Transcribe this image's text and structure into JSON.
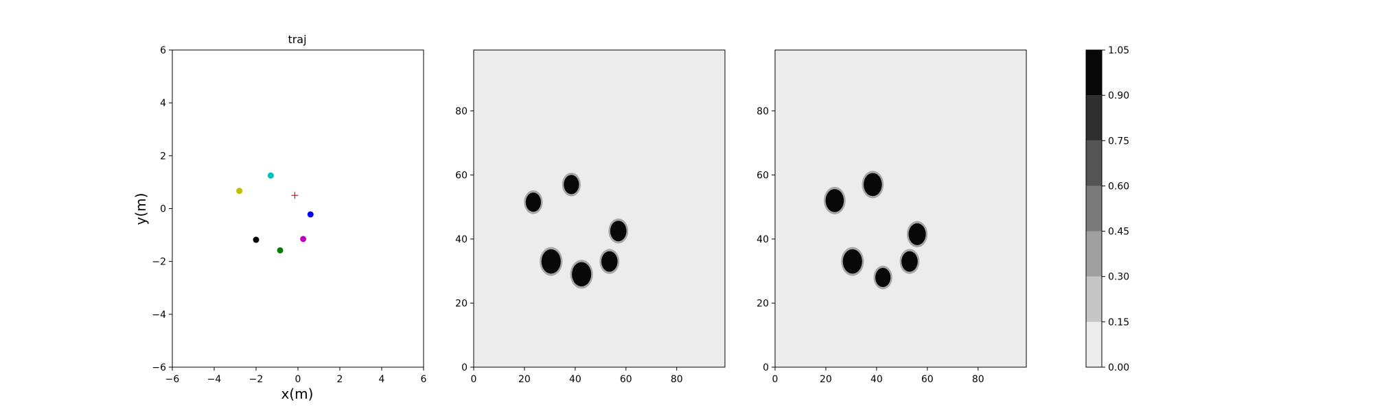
{
  "charts": [
    {
      "chart_data": {
        "type": "scatter",
        "title": "traj",
        "xlabel": "x(m)",
        "ylabel": "y(m)",
        "xlim": [
          -6,
          6
        ],
        "ylim": [
          -6,
          6
        ],
        "xticks": [
          -6,
          -4,
          -2,
          0,
          2,
          4,
          6
        ],
        "yticks": [
          -6,
          -4,
          -2,
          0,
          2,
          4,
          6
        ],
        "grid": false,
        "points": [
          {
            "x": -2.8,
            "y": 0.67,
            "color": "#bfbf00"
          },
          {
            "x": -1.3,
            "y": 1.25,
            "color": "#00bfbf"
          },
          {
            "x": 0.6,
            "y": -0.22,
            "color": "#0000ff"
          },
          {
            "x": 0.25,
            "y": -1.15,
            "color": "#bf00bf"
          },
          {
            "x": -0.85,
            "y": -1.58,
            "color": "#008000"
          },
          {
            "x": -2.0,
            "y": -1.18,
            "color": "#000000"
          }
        ],
        "marker": {
          "x": -0.15,
          "y": 0.5,
          "symbol": "+",
          "color": "#ff0000"
        }
      }
    },
    {
      "chart_data": {
        "type": "heatmap",
        "xlim": [
          0,
          99
        ],
        "ylim": [
          0,
          99
        ],
        "xticks": [
          0,
          20,
          40,
          60,
          80
        ],
        "yticks": [
          0,
          20,
          40,
          60,
          80
        ],
        "background_value": 0.06,
        "blobs": [
          {
            "x": 23.5,
            "y": 51.5,
            "r": 3.0,
            "value": 0.97
          },
          {
            "x": 38.5,
            "y": 57.0,
            "r": 3.0,
            "value": 0.97
          },
          {
            "x": 57.0,
            "y": 42.5,
            "r": 3.2,
            "value": 0.97
          },
          {
            "x": 30.5,
            "y": 33.0,
            "r": 3.8,
            "value": 0.97
          },
          {
            "x": 42.5,
            "y": 29.0,
            "r": 3.8,
            "value": 0.97
          },
          {
            "x": 53.5,
            "y": 33.0,
            "r": 3.2,
            "value": 0.97
          }
        ]
      }
    },
    {
      "chart_data": {
        "type": "heatmap",
        "xlim": [
          0,
          99
        ],
        "ylim": [
          0,
          99
        ],
        "xticks": [
          0,
          20,
          40,
          60,
          80
        ],
        "yticks": [
          0,
          20,
          40,
          60,
          80
        ],
        "background_value": 0.06,
        "blobs": [
          {
            "x": 23.5,
            "y": 52.0,
            "r": 3.6,
            "value": 0.97
          },
          {
            "x": 38.5,
            "y": 57.0,
            "r": 3.6,
            "value": 0.97
          },
          {
            "x": 56.0,
            "y": 41.5,
            "r": 3.4,
            "value": 0.97
          },
          {
            "x": 30.5,
            "y": 33.0,
            "r": 3.8,
            "value": 0.97
          },
          {
            "x": 42.5,
            "y": 28.0,
            "r": 3.0,
            "value": 0.97
          },
          {
            "x": 53.0,
            "y": 33.0,
            "r": 3.2,
            "value": 0.97
          }
        ]
      }
    }
  ],
  "colorbar": {
    "levels": [
      0.0,
      0.15,
      0.3,
      0.45,
      0.6,
      0.75,
      0.9,
      1.05
    ],
    "tick_labels": [
      "0.00",
      "0.15",
      "0.30",
      "0.45",
      "0.60",
      "0.75",
      "0.90",
      "1.05"
    ],
    "colors": [
      "#ececec",
      "#c6c6c6",
      "#a0a0a0",
      "#7a7a7a",
      "#555555",
      "#2f2f2f",
      "#080808"
    ]
  }
}
